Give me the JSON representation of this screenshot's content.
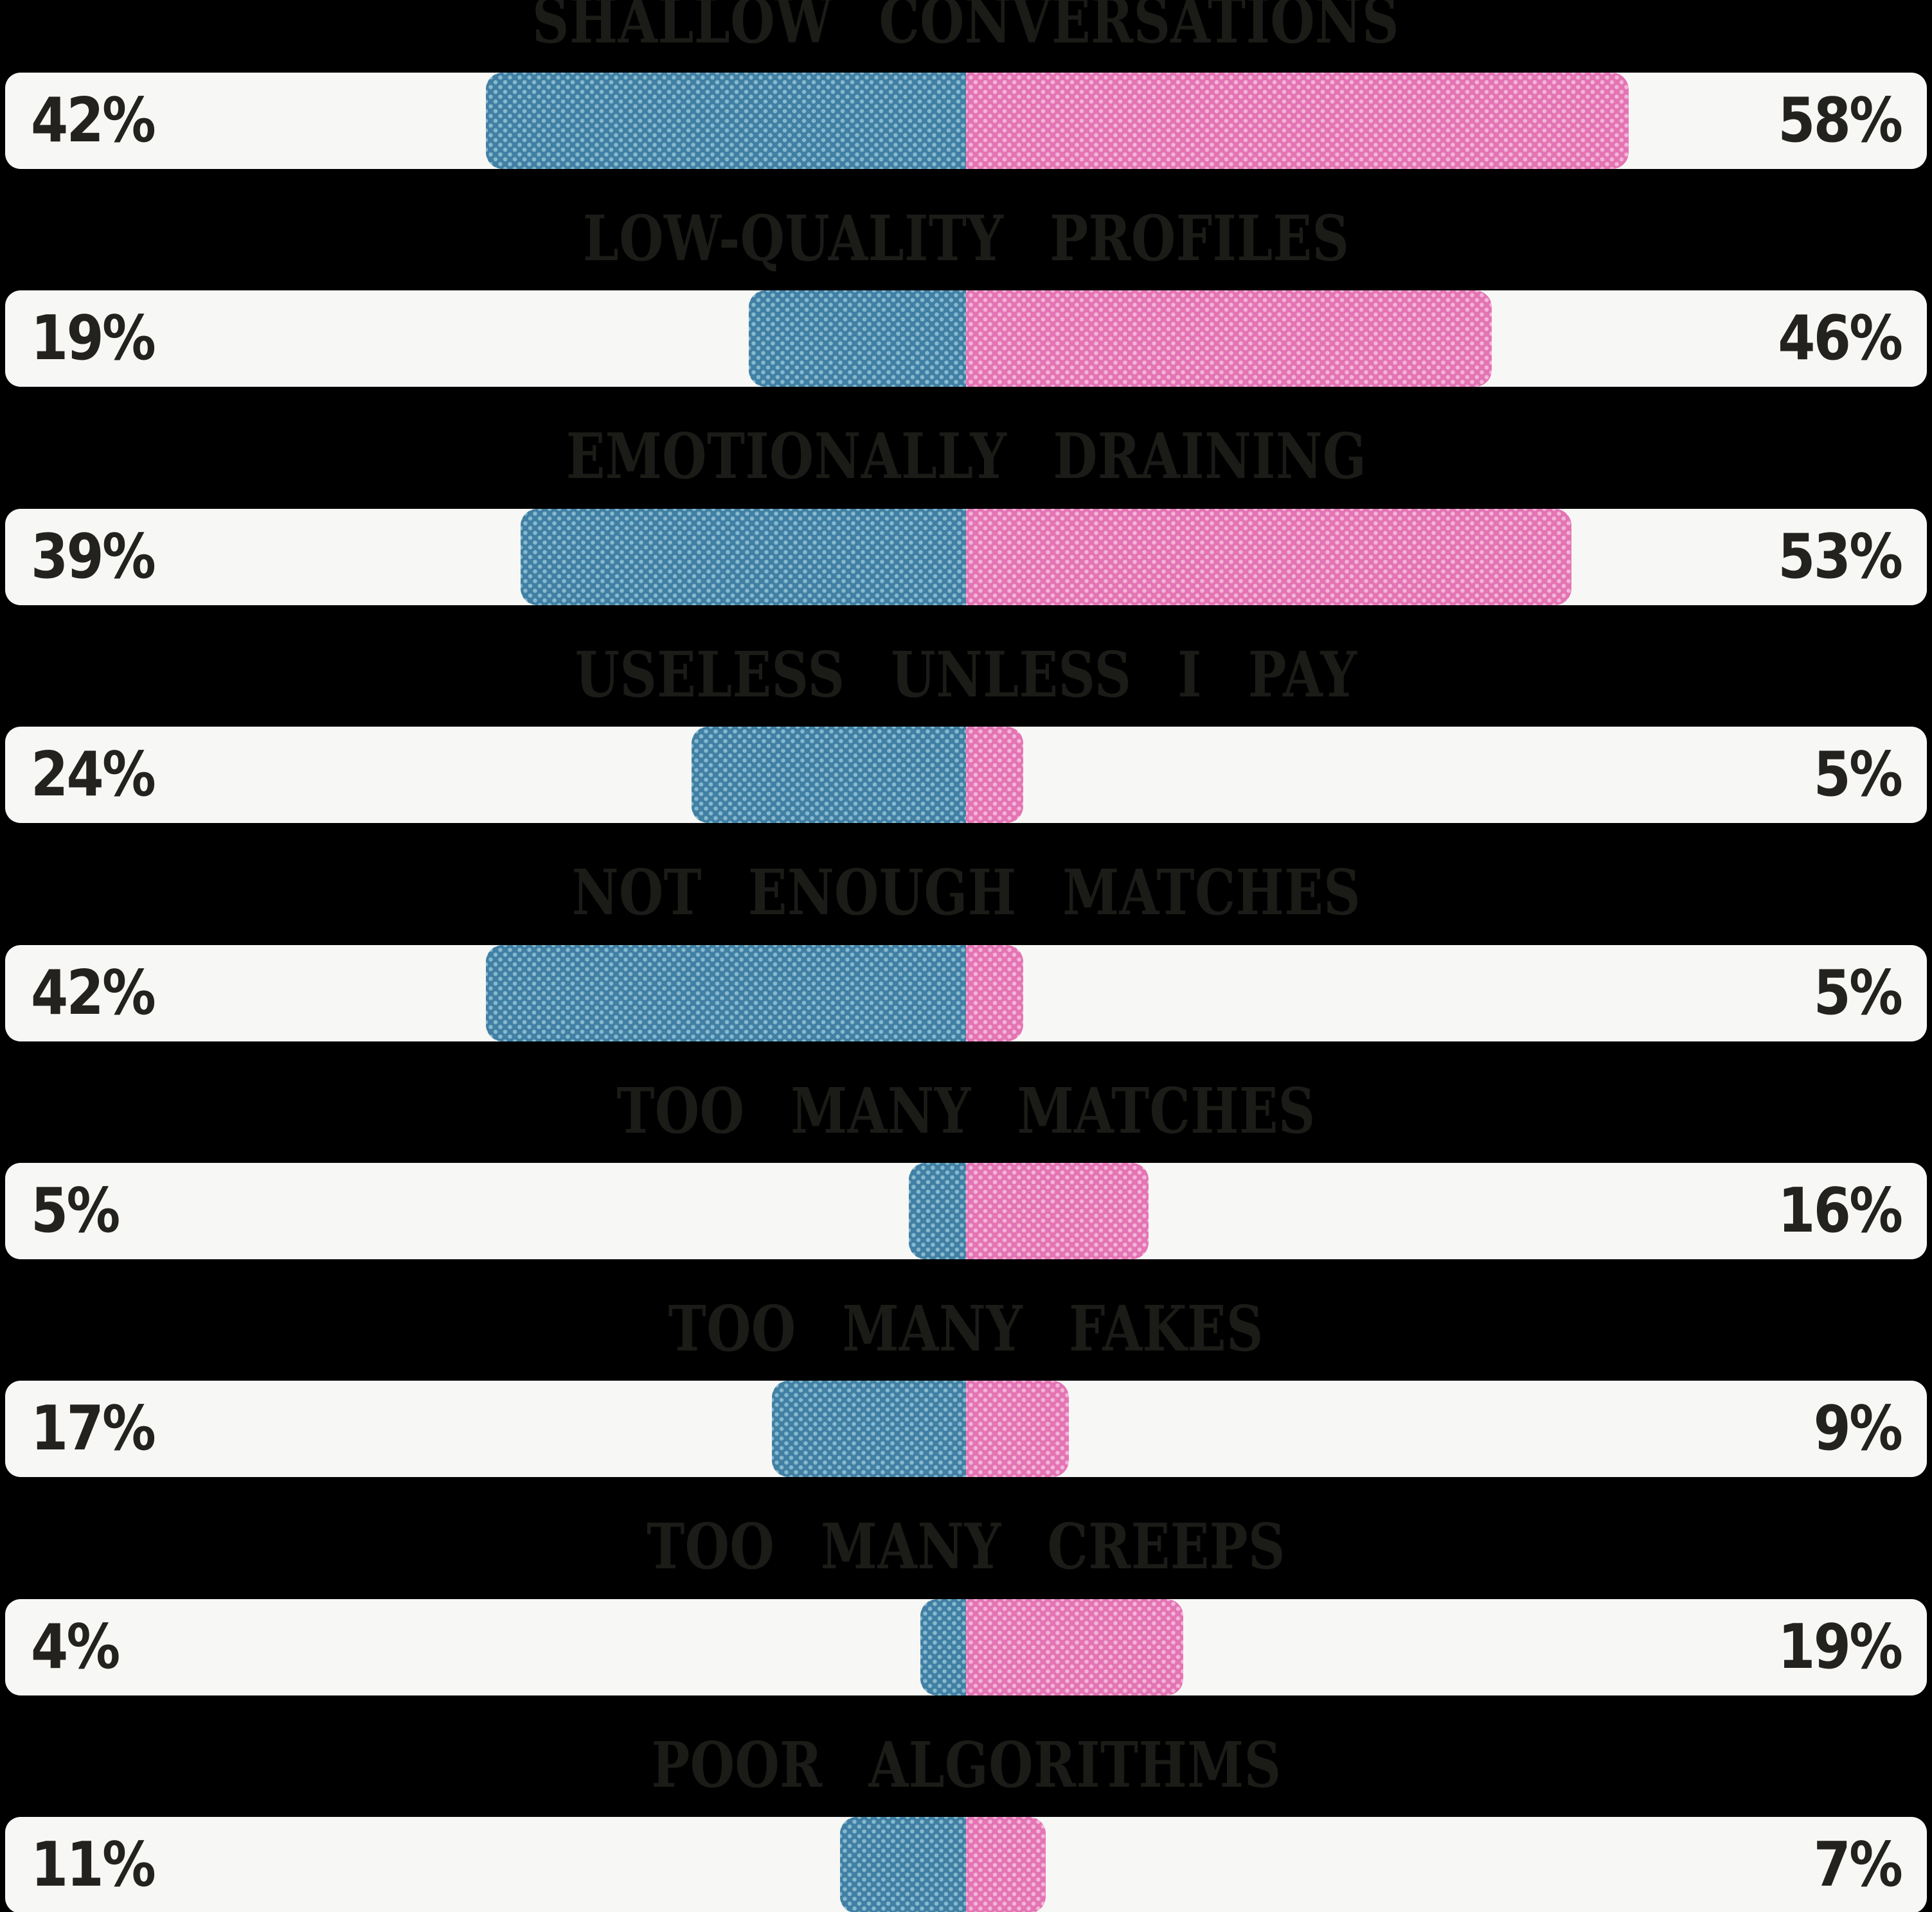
{
  "colors": {
    "background": "#000000",
    "row_background": "#f7f7f5",
    "left_bar_blue": "#4180a4",
    "right_bar_pink": "#e474b4",
    "title_text": "#1b1b18",
    "label_text": "#23221e"
  },
  "rows": [
    {
      "title": "SHALLOW CONVERSATIONS",
      "left_value": 42,
      "left_label": "42%",
      "right_value": 58,
      "right_label": "58%"
    },
    {
      "title": "LOW-QUALITY PROFILES",
      "left_value": 19,
      "left_label": "19%",
      "right_value": 46,
      "right_label": "46%"
    },
    {
      "title": "EMOTIONALLY DRAINING",
      "left_value": 39,
      "left_label": "39%",
      "right_value": 53,
      "right_label": "53%"
    },
    {
      "title": "USELESS UNLESS I PAY",
      "left_value": 24,
      "left_label": "24%",
      "right_value": 5,
      "right_label": "5%"
    },
    {
      "title": "NOT ENOUGH MATCHES",
      "left_value": 42,
      "left_label": "42%",
      "right_value": 5,
      "right_label": "5%"
    },
    {
      "title": "TOO MANY MATCHES",
      "left_value": 5,
      "left_label": "5%",
      "right_value": 16,
      "right_label": "16%"
    },
    {
      "title": "TOO MANY FAKES",
      "left_value": 17,
      "left_label": "17%",
      "right_value": 9,
      "right_label": "9%"
    },
    {
      "title": "TOO MANY CREEPS",
      "left_value": 4,
      "left_label": "4%",
      "right_value": 19,
      "right_label": "19%"
    },
    {
      "title": "POOR ALGORITHMS",
      "left_value": 11,
      "left_label": "11%",
      "right_value": 7,
      "right_label": "7%"
    }
  ],
  "chart_data": {
    "type": "bar",
    "orientation": "diverging-horizontal",
    "title": "",
    "categories": [
      "SHALLOW CONVERSATIONS",
      "LOW-QUALITY PROFILES",
      "EMOTIONALLY DRAINING",
      "USELESS UNLESS I PAY",
      "NOT ENOUGH MATCHES",
      "TOO MANY MATCHES",
      "TOO MANY FAKES",
      "TOO MANY CREEPS",
      "POOR ALGORITHMS"
    ],
    "series": [
      {
        "name": "left-blue",
        "side": "left",
        "color": "#4180a4",
        "values": [
          42,
          19,
          39,
          24,
          42,
          5,
          17,
          4,
          11
        ]
      },
      {
        "name": "right-pink",
        "side": "right",
        "color": "#e474b4",
        "values": [
          58,
          46,
          53,
          5,
          5,
          16,
          9,
          19,
          7
        ]
      }
    ],
    "value_suffix": "%",
    "value_range_per_side": [
      0,
      84.5
    ],
    "grid": false,
    "legend": false,
    "axes_labels": false
  }
}
